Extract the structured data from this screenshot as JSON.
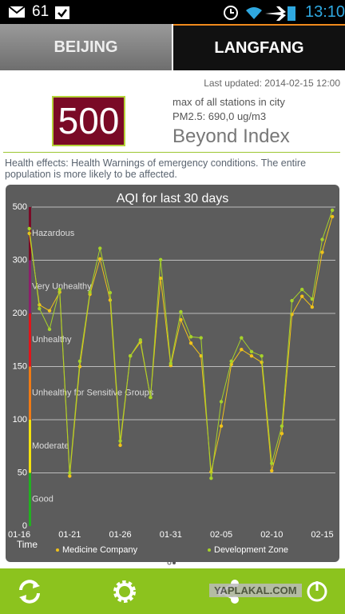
{
  "status_bar": {
    "battery": "61",
    "time": "13:10"
  },
  "tabs": [
    "BEIJING",
    "LANGFANG"
  ],
  "info": {
    "last_updated": "Last updated: 2014-02-15 12:00",
    "aqi": "500",
    "scope": "max of all stations in city",
    "pm25": "PM2.5: 690,0 ug/m3",
    "level": "Beyond Index",
    "health": "Health effects: Health Warnings of emergency conditions. The entire population is more likely to be affected."
  },
  "chart_data": {
    "type": "line",
    "title": "AQI for last 30 days",
    "x_label": "Time",
    "x": [
      1,
      2,
      3,
      4,
      5,
      6,
      7,
      8,
      9,
      10,
      11,
      12,
      13,
      14,
      15,
      16,
      17,
      18,
      19,
      20,
      21,
      22,
      23,
      24,
      25,
      26,
      27,
      28,
      29,
      30,
      31
    ],
    "xlim": [
      -1.27,
      31.7
    ],
    "xticks": [
      {
        "value": 0,
        "label": "01-16"
      },
      {
        "value": 5,
        "label": "01-21"
      },
      {
        "value": 10,
        "label": "01-26"
      },
      {
        "value": 15,
        "label": "01-31"
      },
      {
        "value": 20,
        "label": "02-05"
      },
      {
        "value": 25,
        "label": "02-10"
      },
      {
        "value": 30,
        "label": "02-15"
      }
    ],
    "ylim": [
      0,
      500
    ],
    "yticks": [
      0,
      50,
      100,
      150,
      200,
      300,
      500
    ],
    "y_scale": "piecewise",
    "grid": true,
    "bands": [
      {
        "label": "Good",
        "from": 0,
        "to": 50,
        "color": "#22b021"
      },
      {
        "label": "Moderate",
        "from": 50,
        "to": 100,
        "color": "#f2e20e"
      },
      {
        "label": "Unhealthy for Sensitive Groups",
        "from": 100,
        "to": 150,
        "color": "#f07a14"
      },
      {
        "label": "Unhealthy",
        "from": 150,
        "to": 200,
        "color": "#e0151b"
      },
      {
        "label": "Very Unhealthy",
        "from": 200,
        "to": 300,
        "color": "#8d1f6a"
      },
      {
        "label": "Hazardous",
        "from": 300,
        "to": 500,
        "color": "#7a0a26"
      }
    ],
    "series": [
      {
        "name": "Medicine Company",
        "color": "#f0c21a",
        "values": [
          401,
          216,
          205,
          240,
          47,
          150,
          236,
          305,
          225,
          76,
          160,
          173,
          121,
          266,
          151,
          194,
          172,
          160,
          51,
          94,
          152,
          166,
          160,
          154,
          52,
          87,
          199,
          232,
          212,
          330,
          464
        ]
      },
      {
        "name": "Development Zone",
        "color": "#a6d22a",
        "values": [
          419,
          209,
          185,
          245,
          50,
          155,
          240,
          345,
          239,
          80,
          160,
          175,
          121,
          302,
          153,
          203,
          178,
          177,
          45,
          117,
          155,
          177,
          164,
          160,
          59,
          94,
          224,
          245,
          227,
          378,
          488
        ]
      }
    ]
  },
  "watermark": "YAPLAKAL.COM"
}
